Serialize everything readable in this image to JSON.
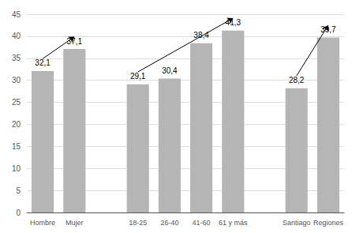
{
  "chart_data": {
    "type": "bar",
    "categories": [
      "Hombre",
      "Mujer",
      null,
      "18-25",
      "26-40",
      "41-60",
      "61 y más",
      null,
      "Santiago",
      "Regiones"
    ],
    "values": [
      32.1,
      37.1,
      null,
      29.1,
      30.4,
      38.4,
      41.3,
      null,
      28.2,
      39.7
    ],
    "value_labels": [
      "32,1",
      "37,1",
      null,
      "29,1",
      "30,4",
      "38,4",
      "41,3",
      null,
      "28,2",
      "39,7"
    ],
    "data_labels": true,
    "color": "#b5b5b5",
    "ylim": [
      0,
      45
    ],
    "yticks": [
      0,
      5,
      10,
      15,
      20,
      25,
      30,
      35,
      40,
      45
    ],
    "grid": true,
    "arrows": [
      {
        "from": "Hombre",
        "to": "Mujer"
      },
      {
        "from": "18-25",
        "to": "61 y más"
      },
      {
        "from": "Santiago",
        "to": "Regiones"
      }
    ]
  }
}
